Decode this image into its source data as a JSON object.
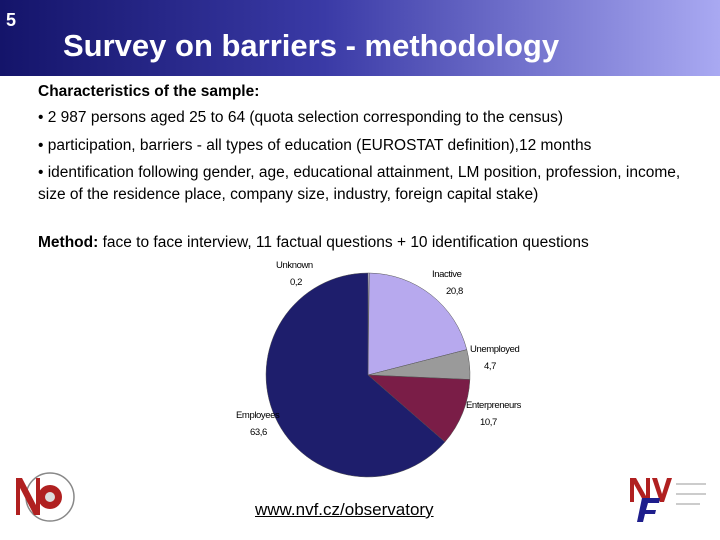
{
  "slide_number": "5",
  "title": "Survey on barriers - methodology",
  "body": {
    "heading": "Characteristics of the sample:",
    "bullets": [
      "• 2 987 persons aged 25 to 64 (quota selection corresponding to the census)",
      "• participation, barriers - all types of education (EUROSTAT definition),12 months",
      "• identification following gender, age, educational attainment, LM position, profession, income, size of the residence place, company size, industry, foreign capital stake)"
    ],
    "method_label": "Method:",
    "method_text": " face to face interview, 11 factual questions + 10 identification questions"
  },
  "chart_data": {
    "type": "pie",
    "categories": [
      "Unknown",
      "Inactive",
      "Unemployed",
      "Enterpreneurs",
      "Employees"
    ],
    "values": [
      0.2,
      20.8,
      4.7,
      10.7,
      63.6
    ],
    "value_labels": [
      "0,2",
      "20,8",
      "4,7",
      "10,7",
      "63,6"
    ],
    "colors": [
      "#d8d8f0",
      "#b7a9ee",
      "#9a9a9a",
      "#7a1d47",
      "#1e1e6c"
    ]
  },
  "footer_url": "www.nvf.cz/observatory"
}
